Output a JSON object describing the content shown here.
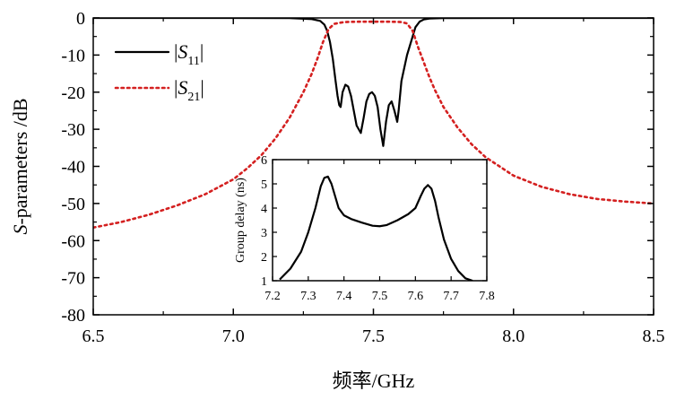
{
  "chart_data": [
    {
      "type": "line",
      "xlabel": "频率/GHz",
      "ylabel_italic": "S",
      "ylabel_rest": "-parameters /dB",
      "xlim": [
        6.5,
        8.5
      ],
      "ylim": [
        -80,
        0
      ],
      "xticks": [
        6.5,
        7.0,
        7.5,
        8.0,
        8.5
      ],
      "xtick_labels": [
        "6.5",
        "7.0",
        "7.5",
        "8.0",
        "8.5"
      ],
      "yticks": [
        0,
        -10,
        -20,
        -30,
        -40,
        -50,
        -60,
        -70,
        -80
      ],
      "ytick_labels": [
        "0",
        "-10",
        "-20",
        "-30",
        "-40",
        "-50",
        "-60",
        "-70",
        "-80"
      ],
      "grid": false,
      "legend_position": "top-left",
      "series": [
        {
          "name": "|S11|",
          "legend_pre": "|",
          "legend_main": "S",
          "legend_sub": "11",
          "legend_post": "|",
          "color": "#000000",
          "style": "solid",
          "x": [
            6.5,
            7.0,
            7.2,
            7.28,
            7.31,
            7.325,
            7.335,
            7.345,
            7.355,
            7.365,
            7.372,
            7.378,
            7.383,
            7.39,
            7.4,
            7.41,
            7.42,
            7.43,
            7.44,
            7.455,
            7.465,
            7.475,
            7.485,
            7.495,
            7.505,
            7.515,
            7.525,
            7.535,
            7.545,
            7.555,
            7.565,
            7.575,
            7.585,
            7.59,
            7.6,
            7.62,
            7.64,
            7.65,
            7.665,
            7.68,
            7.7,
            7.75,
            8.0,
            8.5
          ],
          "y": [
            0,
            0,
            -0.05,
            -0.3,
            -0.8,
            -1.8,
            -3.5,
            -6.5,
            -11,
            -17,
            -21,
            -23.5,
            -24,
            -20,
            -18,
            -18.5,
            -21,
            -25,
            -29,
            -31,
            -27,
            -22.5,
            -20.5,
            -20,
            -21,
            -24,
            -30,
            -34.5,
            -28,
            -23.5,
            -22.5,
            -25,
            -28,
            -25,
            -17,
            -10,
            -5,
            -2.5,
            -1,
            -0.4,
            -0.15,
            -0.05,
            0,
            0
          ]
        },
        {
          "name": "|S21|",
          "legend_pre": "|",
          "legend_main": "S",
          "legend_sub": "21",
          "legend_post": "|",
          "color": "#d42020",
          "style": "dotted",
          "x": [
            6.5,
            6.6,
            6.7,
            6.8,
            6.9,
            7.0,
            7.05,
            7.1,
            7.15,
            7.2,
            7.25,
            7.28,
            7.3,
            7.32,
            7.34,
            7.36,
            7.38,
            7.4,
            7.45,
            7.5,
            7.55,
            7.6,
            7.62,
            7.64,
            7.66,
            7.68,
            7.7,
            7.72,
            7.75,
            7.8,
            7.85,
            7.9,
            8.0,
            8.1,
            8.2,
            8.3,
            8.4,
            8.5
          ],
          "y": [
            -56.5,
            -55,
            -53,
            -50.5,
            -47.5,
            -43.5,
            -40.5,
            -37,
            -32.5,
            -27,
            -20,
            -15,
            -11,
            -6.5,
            -3,
            -1.6,
            -1.3,
            -1.1,
            -1.0,
            -1.0,
            -1.0,
            -1.1,
            -1.5,
            -3.5,
            -8,
            -12,
            -16,
            -19.5,
            -24,
            -29.5,
            -34,
            -37.5,
            -42.5,
            -45.5,
            -47.5,
            -48.8,
            -49.5,
            -50
          ]
        }
      ]
    },
    {
      "type": "line",
      "inset": true,
      "ylabel": "Group delay (ns)",
      "xlim": [
        7.2,
        7.8
      ],
      "ylim": [
        1,
        6
      ],
      "xticks": [
        7.2,
        7.3,
        7.4,
        7.5,
        7.6,
        7.7,
        7.8
      ],
      "xtick_labels": [
        "7.2",
        "7.3",
        "7.4",
        "7.5",
        "7.6",
        "7.7",
        "7.8"
      ],
      "yticks": [
        1,
        2,
        3,
        4,
        5,
        6
      ],
      "ytick_labels": [
        "1",
        "2",
        "3",
        "4",
        "5",
        "6"
      ],
      "series": [
        {
          "color": "#000000",
          "style": "solid",
          "x": [
            7.22,
            7.25,
            7.28,
            7.3,
            7.32,
            7.335,
            7.345,
            7.355,
            7.365,
            7.375,
            7.385,
            7.4,
            7.42,
            7.45,
            7.48,
            7.5,
            7.52,
            7.55,
            7.58,
            7.6,
            7.615,
            7.625,
            7.635,
            7.645,
            7.655,
            7.665,
            7.68,
            7.7,
            7.72,
            7.74,
            7.76
          ],
          "y": [
            1.05,
            1.5,
            2.2,
            3.0,
            4.0,
            4.9,
            5.25,
            5.3,
            5.0,
            4.5,
            4.0,
            3.7,
            3.55,
            3.4,
            3.27,
            3.25,
            3.3,
            3.5,
            3.75,
            4.0,
            4.5,
            4.8,
            4.95,
            4.8,
            4.3,
            3.6,
            2.7,
            1.9,
            1.4,
            1.1,
            1.0
          ]
        }
      ]
    }
  ]
}
